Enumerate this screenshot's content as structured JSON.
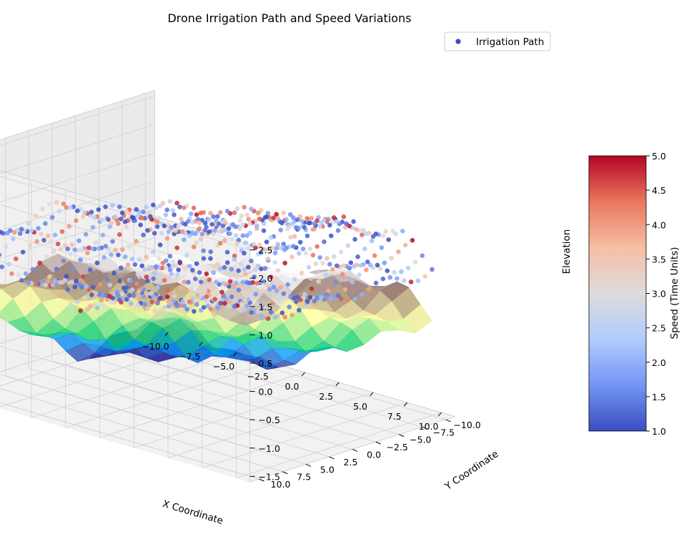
{
  "chart_data": {
    "type": "scatter3d",
    "title": "Drone Irrigation Path and Speed Variations",
    "xlabel": "X Coordinate",
    "ylabel": "Y Coordinate",
    "zlabel": "Elevation",
    "xlim": [
      -11,
      11
    ],
    "ylim": [
      -11,
      11
    ],
    "zlim": [
      -1.6,
      2.6
    ],
    "x_ticks": [
      -10.0,
      -7.5,
      -5.0,
      -2.5,
      0.0,
      2.5,
      5.0,
      7.5,
      10.0
    ],
    "y_ticks": [
      -10.0,
      -7.5,
      -5.0,
      -2.5,
      0.0,
      2.5,
      5.0,
      7.5,
      10.0
    ],
    "z_ticks": [
      -1.5,
      -1.0,
      -0.5,
      0.0,
      0.5,
      1.0,
      1.5,
      2.0,
      2.5
    ],
    "x_tick_labels": [
      "−10.0",
      "−7.5",
      "−5.0",
      "−2.5",
      "0.0",
      "2.5",
      "5.0",
      "7.5",
      "10.0"
    ],
    "y_tick_labels": [
      "−10.0",
      "−7.5",
      "−5.0",
      "−2.5",
      "0.0",
      "2.5",
      "5.0",
      "7.5",
      "10.0"
    ],
    "z_tick_labels": [
      "−1.5",
      "−1.0",
      "−0.5",
      "0.0",
      "0.5",
      "1.0",
      "1.5",
      "2.0",
      "2.5"
    ],
    "legend": {
      "label": "Irrigation Path",
      "placement": "top-right",
      "marker_color": "#3b4cc0"
    },
    "grid": true,
    "surface": {
      "colormap": "terrain",
      "x_range": [
        -10,
        10
      ],
      "y_range": [
        -10,
        10
      ]
    },
    "path": {
      "rows": 20,
      "points_per_row": 40,
      "x_range": [
        -10,
        10
      ],
      "y_range": [
        -10,
        10
      ],
      "z_offset": 1.2,
      "speed_range": [
        1,
        5
      ]
    },
    "colorbar": {
      "label": "Speed (Time Units)",
      "min": 1.0,
      "max": 5.0,
      "ticks": [
        1.0,
        1.5,
        2.0,
        2.5,
        3.0,
        3.5,
        4.0,
        4.5,
        5.0
      ],
      "tick_labels": [
        "1.0",
        "1.5",
        "2.0",
        "2.5",
        "3.0",
        "3.5",
        "4.0",
        "4.5",
        "5.0"
      ],
      "colormap": "coolwarm",
      "colormap_stops": [
        "#3b4cc0",
        "#7396f5",
        "#b0cbfc",
        "#dddcdc",
        "#f6bea4",
        "#e9785d",
        "#b40426"
      ]
    }
  }
}
